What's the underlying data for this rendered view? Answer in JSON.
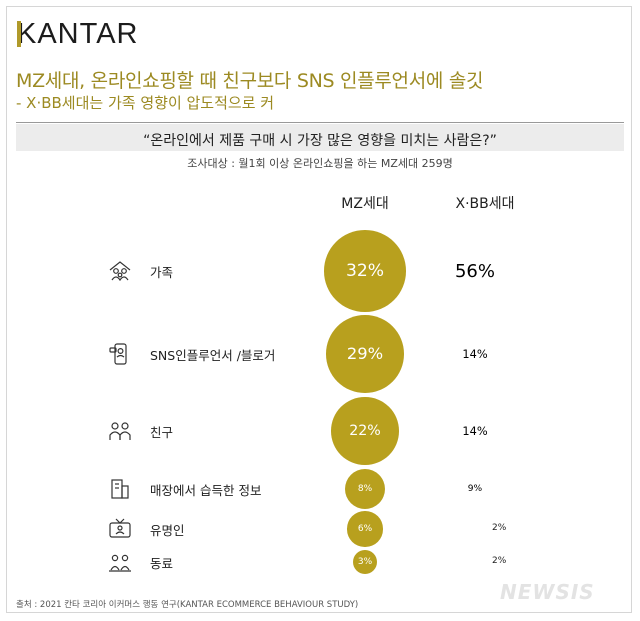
{
  "brand": "KANTAR",
  "title_line1": "MZ세대, 온라인쇼핑할 때 친구보다 SNS 인플루언서에 솔깃",
  "title_line2": "- X·BB세대는 가족 영향이 압도적으로 커",
  "question": "“온라인에서 제품 구매 시 가장 많은 영향을 미치는 사람은?”",
  "survey_note": "조사대상 : 월1회 이상 온라인쇼핑을 하는 MZ세대 259명",
  "source": "출처 : 2021 칸타 코리아 이커머스 행동 연구(KANTAR ECOMMERCE BEHAVIOUR STUDY)",
  "watermark": "NEWSIS",
  "colors": {
    "mz": "#b8a01e",
    "xbb": "#262626",
    "title": "#9c8a22"
  },
  "chart_data": {
    "type": "bubble",
    "categories": [
      "가족",
      "SNS인플루언서 /블로거",
      "친구",
      "매장에서 습득한 정보",
      "유명인",
      "동료"
    ],
    "category_icons": [
      "family-icon",
      "phone-influencer-icon",
      "friends-icon",
      "store-icon",
      "tv-celebrity-icon",
      "coworkers-icon"
    ],
    "unit": "%",
    "series": [
      {
        "name": "MZ세대",
        "values": [
          32,
          29,
          22,
          8,
          6,
          3
        ]
      },
      {
        "name": "X·BB세대",
        "values": [
          56,
          14,
          14,
          9,
          2,
          2
        ]
      }
    ]
  }
}
